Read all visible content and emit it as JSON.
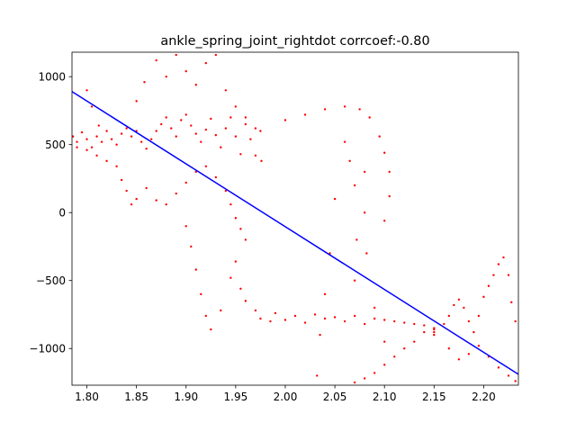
{
  "chart_data": {
    "type": "scatter",
    "title": "ankle_spring_joint_rightdot corrcoef:-0.80",
    "xlabel": "",
    "ylabel": "",
    "xlim": [
      1.785,
      2.235
    ],
    "ylim": [
      -1270,
      1180
    ],
    "grid": false,
    "x_ticks": [
      1.8,
      1.85,
      1.9,
      1.95,
      2.0,
      2.05,
      2.1,
      2.15,
      2.2
    ],
    "x_tick_labels": [
      "1.80",
      "1.85",
      "1.90",
      "1.95",
      "2.00",
      "2.05",
      "2.10",
      "2.15",
      "2.20"
    ],
    "y_ticks": [
      -1000,
      -500,
      0,
      500,
      1000
    ],
    "y_tick_labels": [
      "−1000",
      "−500",
      "0",
      "500",
      "1000"
    ],
    "colors": {
      "scatter": "#ff0000",
      "fit": "#0000ff"
    },
    "fit_line": {
      "x": [
        1.785,
        2.235
      ],
      "y": [
        890,
        -1190
      ]
    },
    "series": [
      {
        "values": [
          [
            1.786,
            560
          ],
          [
            1.79,
            520
          ],
          [
            1.795,
            590
          ],
          [
            1.8,
            540
          ],
          [
            1.805,
            480
          ],
          [
            1.81,
            560
          ],
          [
            1.815,
            520
          ],
          [
            1.82,
            600
          ],
          [
            1.825,
            540
          ],
          [
            1.83,
            500
          ],
          [
            1.835,
            580
          ],
          [
            1.84,
            620
          ],
          [
            1.845,
            560
          ],
          [
            1.85,
            600
          ],
          [
            1.855,
            520
          ],
          [
            1.86,
            470
          ],
          [
            1.865,
            540
          ],
          [
            1.87,
            600
          ],
          [
            1.875,
            650
          ],
          [
            1.88,
            700
          ],
          [
            1.885,
            620
          ],
          [
            1.89,
            560
          ],
          [
            1.895,
            680
          ],
          [
            1.9,
            720
          ],
          [
            1.905,
            640
          ],
          [
            1.91,
            580
          ],
          [
            1.915,
            520
          ],
          [
            1.92,
            610
          ],
          [
            1.925,
            690
          ],
          [
            1.93,
            570
          ],
          [
            1.935,
            480
          ],
          [
            1.94,
            620
          ],
          [
            1.945,
            700
          ],
          [
            1.95,
            560
          ],
          [
            1.955,
            430
          ],
          [
            1.96,
            650
          ],
          [
            1.965,
            540
          ],
          [
            1.97,
            420
          ],
          [
            1.975,
            600
          ],
          [
            1.976,
            380
          ],
          [
            1.79,
            480
          ],
          [
            1.8,
            460
          ],
          [
            1.81,
            420
          ],
          [
            1.82,
            380
          ],
          [
            1.83,
            340
          ],
          [
            1.835,
            240
          ],
          [
            1.84,
            160
          ],
          [
            1.845,
            60
          ],
          [
            1.85,
            100
          ],
          [
            1.86,
            180
          ],
          [
            1.87,
            90
          ],
          [
            1.88,
            60
          ],
          [
            1.89,
            140
          ],
          [
            1.9,
            220
          ],
          [
            1.91,
            300
          ],
          [
            1.92,
            340
          ],
          [
            1.93,
            260
          ],
          [
            1.94,
            160
          ],
          [
            1.945,
            60
          ],
          [
            1.95,
            -40
          ],
          [
            1.955,
            -120
          ],
          [
            1.96,
            -200
          ],
          [
            1.8,
            900
          ],
          [
            1.805,
            780
          ],
          [
            1.812,
            640
          ],
          [
            1.85,
            820
          ],
          [
            1.858,
            960
          ],
          [
            1.87,
            1120
          ],
          [
            1.88,
            1000
          ],
          [
            1.89,
            1160
          ],
          [
            1.9,
            1040
          ],
          [
            1.91,
            940
          ],
          [
            1.92,
            1100
          ],
          [
            1.93,
            1160
          ],
          [
            1.94,
            900
          ],
          [
            1.95,
            780
          ],
          [
            1.96,
            700
          ],
          [
            1.97,
            620
          ],
          [
            1.9,
            -100
          ],
          [
            1.905,
            -250
          ],
          [
            1.91,
            -420
          ],
          [
            1.915,
            -600
          ],
          [
            1.92,
            -760
          ],
          [
            1.925,
            -860
          ],
          [
            1.935,
            -720
          ],
          [
            1.945,
            -480
          ],
          [
            1.95,
            -360
          ],
          [
            1.955,
            -560
          ],
          [
            1.96,
            -650
          ],
          [
            1.975,
            -780
          ],
          [
            1.985,
            -800
          ],
          [
            2.0,
            -790
          ],
          [
            2.02,
            -810
          ],
          [
            2.04,
            -780
          ],
          [
            2.06,
            -800
          ],
          [
            2.08,
            -820
          ],
          [
            2.1,
            -790
          ],
          [
            2.12,
            -810
          ],
          [
            2.14,
            -830
          ],
          [
            2.15,
            -850
          ],
          [
            1.97,
            -720
          ],
          [
            1.99,
            -740
          ],
          [
            2.01,
            -760
          ],
          [
            2.03,
            -750
          ],
          [
            2.05,
            -770
          ],
          [
            2.07,
            -760
          ],
          [
            2.09,
            -780
          ],
          [
            2.11,
            -800
          ],
          [
            2.13,
            -820
          ],
          [
            2.15,
            -860
          ],
          [
            2.0,
            680
          ],
          [
            2.02,
            720
          ],
          [
            2.04,
            760
          ],
          [
            2.06,
            780
          ],
          [
            2.075,
            760
          ],
          [
            2.085,
            700
          ],
          [
            2.095,
            560
          ],
          [
            2.1,
            440
          ],
          [
            2.105,
            300
          ],
          [
            2.105,
            120
          ],
          [
            2.1,
            -60
          ],
          [
            2.06,
            520
          ],
          [
            2.065,
            380
          ],
          [
            2.07,
            200
          ],
          [
            2.072,
            -200
          ],
          [
            2.07,
            -500
          ],
          [
            2.05,
            100
          ],
          [
            2.045,
            -300
          ],
          [
            2.04,
            -600
          ],
          [
            2.035,
            -900
          ],
          [
            2.032,
            -1200
          ],
          [
            2.08,
            300
          ],
          [
            2.08,
            0
          ],
          [
            2.082,
            -300
          ],
          [
            2.09,
            -700
          ],
          [
            2.1,
            -950
          ],
          [
            2.15,
            -880
          ],
          [
            2.16,
            -820
          ],
          [
            2.165,
            -760
          ],
          [
            2.17,
            -680
          ],
          [
            2.175,
            -640
          ],
          [
            2.18,
            -700
          ],
          [
            2.185,
            -800
          ],
          [
            2.19,
            -880
          ],
          [
            2.195,
            -760
          ],
          [
            2.2,
            -620
          ],
          [
            2.205,
            -540
          ],
          [
            2.21,
            -460
          ],
          [
            2.215,
            -380
          ],
          [
            2.22,
            -330
          ],
          [
            2.225,
            -460
          ],
          [
            2.228,
            -660
          ],
          [
            2.232,
            -800
          ],
          [
            2.165,
            -1000
          ],
          [
            2.175,
            -1080
          ],
          [
            2.185,
            -1040
          ],
          [
            2.195,
            -980
          ],
          [
            2.205,
            -1060
          ],
          [
            2.215,
            -1140
          ],
          [
            2.225,
            -1200
          ],
          [
            2.232,
            -1240
          ],
          [
            2.15,
            -900
          ],
          [
            2.14,
            -880
          ],
          [
            2.13,
            -950
          ],
          [
            2.12,
            -1000
          ],
          [
            2.11,
            -1060
          ],
          [
            2.1,
            -1120
          ],
          [
            2.09,
            -1180
          ],
          [
            2.08,
            -1220
          ],
          [
            2.07,
            -1250
          ]
        ]
      }
    ]
  }
}
